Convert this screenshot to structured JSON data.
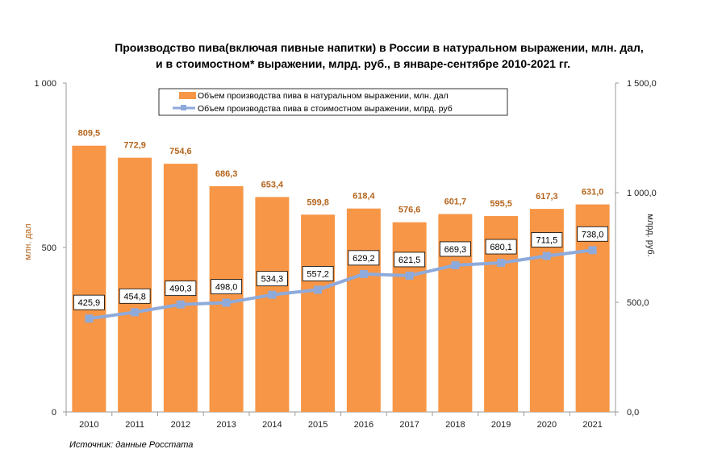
{
  "chart_data": {
    "type": "bar+line",
    "title_line1": "Производство пива(включая пивные напитки) в России в натуральном выражении, млн. дал,",
    "title_line2": "и в стоимостном* выражении, млрд. руб., в январе-сентябре 2010-2021 гг.",
    "categories": [
      "2010",
      "2011",
      "2012",
      "2013",
      "2014",
      "2015",
      "2016",
      "2017",
      "2018",
      "2019",
      "2020",
      "2021"
    ],
    "series": [
      {
        "name": "Объем производства пива в натуральном выражении, млн. дал",
        "type": "bar",
        "axis": "left",
        "color": "#f79646",
        "values": [
          809.5,
          772.9,
          754.6,
          686.3,
          653.4,
          599.8,
          618.4,
          576.6,
          601.7,
          595.5,
          617.3,
          631.0
        ],
        "labels": [
          "809,5",
          "772,9",
          "754,6",
          "686,3",
          "653,4",
          "599,8",
          "618,4",
          "576,6",
          "601,7",
          "595,5",
          "617,3",
          "631,0"
        ]
      },
      {
        "name": "Объем производства пива в стоимостном выражении, млрд. руб",
        "type": "line",
        "axis": "right",
        "color": "#8eaadb",
        "values": [
          425.9,
          454.8,
          490.3,
          498.0,
          534.3,
          557.2,
          629.2,
          621.5,
          669.3,
          680.1,
          711.5,
          738.0
        ],
        "labels": [
          "425,9",
          "454,8",
          "490,3",
          "498,0",
          "534,3",
          "557,2",
          "629,2",
          "621,5",
          "669,3",
          "680,1",
          "711,5",
          "738,0"
        ]
      }
    ],
    "y_left": {
      "label": "млн. дал",
      "min": 0,
      "max": 1000,
      "ticks": [
        0,
        500,
        1000
      ],
      "tick_labels": [
        "0",
        "500",
        "1 000"
      ]
    },
    "y_right": {
      "label": "млрд. руб.",
      "min": 0,
      "max": 1500,
      "ticks": [
        0,
        500,
        1000,
        1500
      ],
      "tick_labels": [
        "0,0",
        "500,0",
        "1 000,0",
        "1 500,0"
      ]
    },
    "legend_position": "top-center",
    "grid": false
  },
  "source_note": "Источник: данные Росстата"
}
